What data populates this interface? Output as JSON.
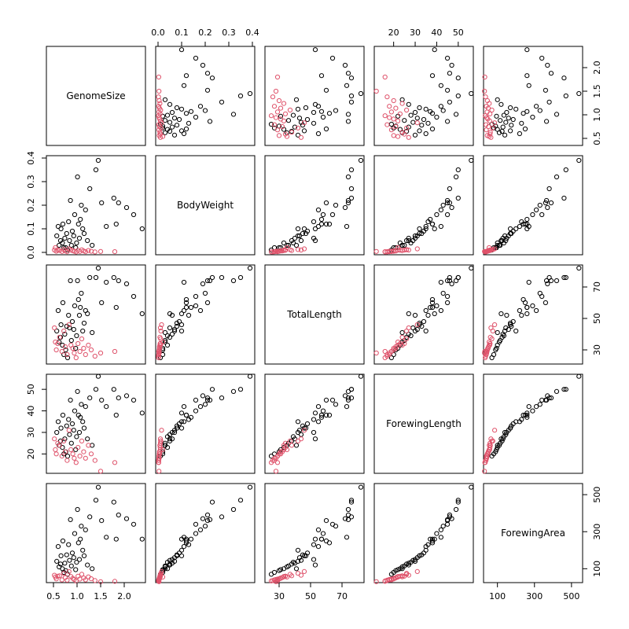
{
  "chart_data": {
    "type": "scatter",
    "variables": [
      "GenomeSize",
      "BodyWeight",
      "TotalLength",
      "ForewingLength",
      "ForewingArea"
    ],
    "ranges": [
      [
        0.35,
        2.45
      ],
      [
        -0.01,
        0.41
      ],
      [
        21,
        84
      ],
      [
        11,
        57
      ],
      [
        25,
        560
      ]
    ],
    "ticks": [
      [
        0.5,
        1.0,
        1.5,
        2.0
      ],
      [
        0.0,
        0.1,
        0.2,
        0.3,
        0.4
      ],
      [
        30,
        50,
        70
      ],
      [
        20,
        30,
        40,
        50
      ],
      [
        100,
        300,
        500
      ]
    ],
    "tick_labels": [
      [
        "0.5",
        "1.0",
        "1.5",
        "2.0"
      ],
      [
        "0.0",
        "0.1",
        "0.2",
        "0.3",
        "0.4"
      ],
      [
        "30",
        "50",
        "70"
      ],
      [
        "20",
        "30",
        "40",
        "50"
      ],
      [
        "100",
        "300",
        "500"
      ]
    ],
    "series": [
      {
        "color": "#000000",
        "points": [
          [
            0.57,
            0.07,
            42,
            30,
            140
          ],
          [
            0.6,
            0.11,
            55,
            35,
            220
          ],
          [
            0.62,
            0.03,
            35,
            24,
            110
          ],
          [
            0.65,
            0.05,
            38,
            26,
            125
          ],
          [
            0.66,
            0.1,
            46,
            32,
            170
          ],
          [
            0.69,
            0.04,
            33,
            23,
            100
          ],
          [
            0.7,
            0.12,
            60,
            38,
            250
          ],
          [
            0.72,
            0.02,
            27,
            20,
            80
          ],
          [
            0.74,
            0.06,
            40,
            27,
            130
          ],
          [
            0.76,
            0.02,
            30,
            21,
            90
          ],
          [
            0.78,
            0.08,
            45,
            33,
            175
          ],
          [
            0.8,
            0.01,
            25,
            19,
            70
          ],
          [
            0.82,
            0.13,
            52,
            36,
            230
          ],
          [
            0.84,
            0.05,
            44,
            29,
            145
          ],
          [
            0.86,
            0.22,
            74,
            45,
            365
          ],
          [
            0.88,
            0.03,
            36,
            25,
            115
          ],
          [
            0.9,
            0.09,
            48,
            34,
            185
          ],
          [
            0.93,
            0.07,
            43,
            31,
            160
          ],
          [
            0.95,
            0.16,
            58,
            40,
            290
          ],
          [
            0.97,
            0.02,
            31,
            22,
            95
          ],
          [
            0.99,
            0.04,
            39,
            28,
            135
          ],
          [
            1.01,
            0.32,
            74,
            49,
            420
          ],
          [
            1.03,
            0.12,
            62,
            38,
            240
          ],
          [
            1.05,
            0.06,
            52,
            30,
            150
          ],
          [
            1.07,
            0.14,
            57,
            37,
            260
          ],
          [
            1.09,
            0.2,
            66,
            43,
            330
          ],
          [
            1.12,
            0.1,
            42,
            35,
            200
          ],
          [
            1.15,
            0.08,
            47,
            32,
            170
          ],
          [
            1.18,
            0.18,
            55,
            42,
            310
          ],
          [
            1.22,
            0.05,
            53,
            27,
            120
          ],
          [
            1.27,
            0.27,
            76,
            46,
            380
          ],
          [
            1.32,
            0.03,
            41,
            24,
            100
          ],
          [
            1.4,
            0.35,
            76,
            50,
            470
          ],
          [
            1.45,
            0.39,
            82,
            56,
            540
          ],
          [
            1.52,
            0.21,
            60,
            45,
            360
          ],
          [
            1.62,
            0.11,
            73,
            42,
            270
          ],
          [
            1.78,
            0.23,
            76,
            50,
            460
          ],
          [
            1.83,
            0.12,
            57,
            38,
            260
          ],
          [
            1.88,
            0.21,
            74,
            46,
            390
          ],
          [
            2.05,
            0.19,
            72,
            47,
            370
          ],
          [
            2.2,
            0.16,
            64,
            45,
            340
          ],
          [
            2.38,
            0.1,
            53,
            39,
            260
          ]
        ]
      },
      {
        "color": "#DF536B",
        "points": [
          [
            0.52,
            0.01,
            44,
            27,
            65
          ],
          [
            0.54,
            0.02,
            35,
            22,
            55
          ],
          [
            0.56,
            0.005,
            30,
            20,
            45
          ],
          [
            0.59,
            0.01,
            34,
            25,
            60
          ],
          [
            0.63,
            0.008,
            38,
            24,
            62
          ],
          [
            0.68,
            0.004,
            29,
            19,
            40
          ],
          [
            0.72,
            0.012,
            42,
            26,
            75
          ],
          [
            0.75,
            0.006,
            32,
            21,
            52
          ],
          [
            0.79,
            0.003,
            27,
            17,
            38
          ],
          [
            0.83,
            0.015,
            46,
            31,
            85
          ],
          [
            0.87,
            0.01,
            33,
            22,
            58
          ],
          [
            0.91,
            0.007,
            31,
            20,
            48
          ],
          [
            0.94,
            0.005,
            28,
            18,
            42
          ],
          [
            0.98,
            0.002,
            25,
            16,
            34
          ],
          [
            1.02,
            0.009,
            34,
            23,
            60
          ],
          [
            1.06,
            0.004,
            29,
            19,
            44
          ],
          [
            1.1,
            0.011,
            37,
            26,
            70
          ],
          [
            1.14,
            0.006,
            31,
            21,
            50
          ],
          [
            1.18,
            0.003,
            27,
            18,
            40
          ],
          [
            1.24,
            0.008,
            33,
            24,
            56
          ],
          [
            1.3,
            0.005,
            30,
            20,
            46
          ],
          [
            1.38,
            0.002,
            26,
            17,
            36
          ],
          [
            1.5,
            0.004,
            28,
            12,
            30
          ],
          [
            1.8,
            0.003,
            29,
            16,
            32
          ]
        ]
      }
    ]
  }
}
